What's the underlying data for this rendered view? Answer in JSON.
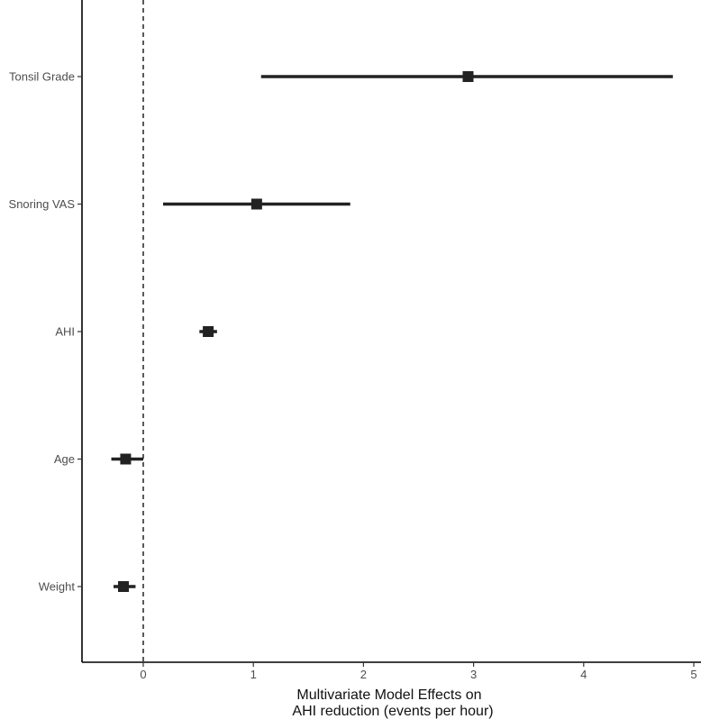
{
  "chart_data": {
    "type": "forest",
    "title": "",
    "xlabel_lines": [
      "Multivariate Model Effects on",
      "AHI reduction (events per hour)"
    ],
    "ylabel": "",
    "xlim": [
      -0.55,
      5.05
    ],
    "xticks": [
      0,
      1,
      2,
      3,
      4,
      5
    ],
    "xtick_labels": [
      "0",
      "1",
      "2",
      "3",
      "4",
      "5"
    ],
    "reference_line": {
      "x": 0,
      "style": "dashed"
    },
    "grid": false,
    "categories": [
      "Tonsil Grade",
      "Snoring VAS",
      "AHI",
      "Age",
      "Weight"
    ],
    "estimates": [
      2.95,
      1.03,
      0.59,
      -0.16,
      -0.18
    ],
    "ci_lower": [
      1.07,
      0.18,
      0.51,
      -0.29,
      -0.27
    ],
    "ci_upper": [
      4.81,
      1.88,
      0.67,
      0.0,
      -0.07
    ],
    "colors": {
      "marker": "#222222",
      "axis": "#000000",
      "tick_text": "#4d4d4d"
    }
  }
}
